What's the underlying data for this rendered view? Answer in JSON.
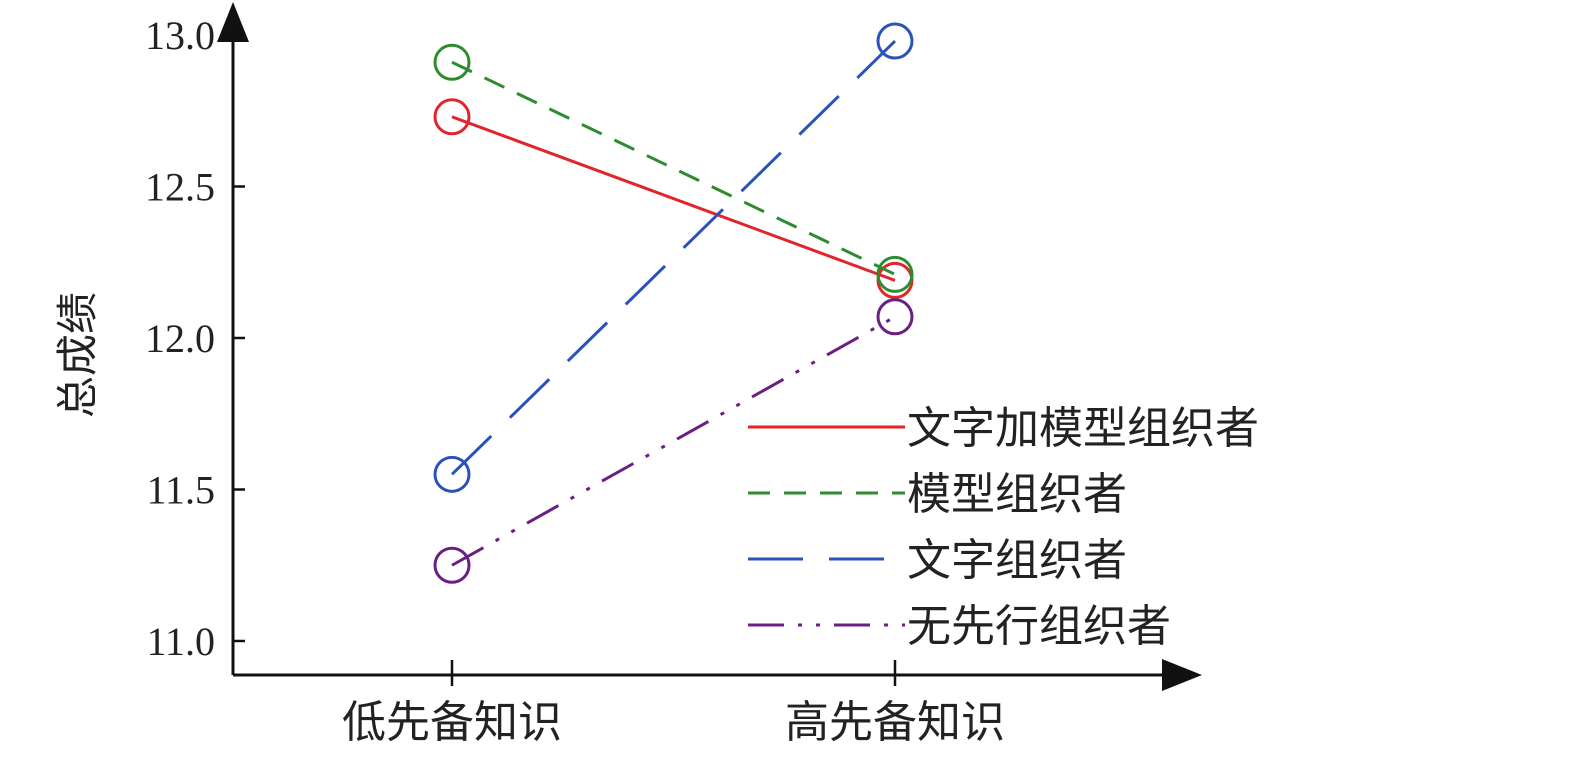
{
  "chart_data": {
    "type": "line",
    "categories": [
      "低先备知识",
      "高先备知识"
    ],
    "ylabel": "总成绩",
    "xlabel": "",
    "ylim": [
      11.0,
      13.0
    ],
    "yticks": [
      "11.0",
      "11.5",
      "12.0",
      "12.5",
      "13.0"
    ],
    "grid": false,
    "legend_position": "right",
    "series": [
      {
        "name": "文字加模型组织者",
        "values": [
          12.73,
          12.19
        ],
        "color": "#e0262b",
        "dash": "solid"
      },
      {
        "name": "模型组织者",
        "values": [
          12.91,
          12.21
        ],
        "color": "#2e8b2e",
        "dash": "dashed"
      },
      {
        "name": "文字组织者",
        "values": [
          11.55,
          12.98
        ],
        "color": "#2a52b8",
        "dash": "long-dash"
      },
      {
        "name": "无先行组织者",
        "values": [
          11.25,
          12.07
        ],
        "color": "#6a1f82",
        "dash": "dash-dot-dot"
      }
    ]
  }
}
